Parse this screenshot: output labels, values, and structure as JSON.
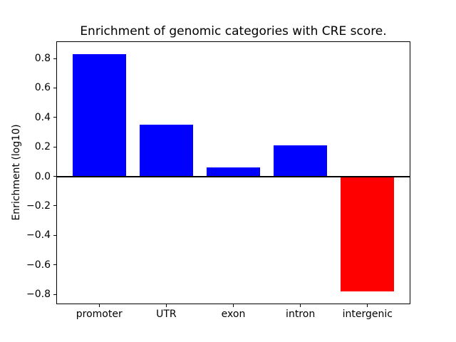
{
  "figure": {
    "title": "Enrichment of genomic categories with CRE score.",
    "ylabel": "Enrichment (log10)"
  },
  "chart_data": {
    "type": "bar",
    "title": "Enrichment of genomic categories with CRE score.",
    "xlabel": "",
    "ylabel": "Enrichment (log10)",
    "categories": [
      "promoter",
      "UTR",
      "exon",
      "intron",
      "intergenic"
    ],
    "values": [
      0.83,
      0.35,
      0.06,
      0.21,
      -0.78
    ],
    "bar_colors": [
      "#0000ff",
      "#0000ff",
      "#0000ff",
      "#0000ff",
      "#ff0000"
    ],
    "positive_color": "#0000ff",
    "negative_color": "#ff0000",
    "yticks": [
      0.8,
      0.6,
      0.4,
      0.2,
      0.0,
      -0.2,
      -0.4,
      -0.6,
      -0.8
    ],
    "ytick_labels": [
      "0.8",
      "0.6",
      "0.4",
      "0.2",
      "0.0",
      "−0.2",
      "−0.4",
      "−0.6",
      "−0.8"
    ],
    "ylim": [
      -0.867,
      0.916
    ],
    "xlim": [
      -0.64,
      4.64
    ],
    "bar_width": 0.8,
    "zero_line": true,
    "grid": false,
    "legend": null,
    "axis_color": "#000000",
    "background_color": "#ffffff"
  }
}
